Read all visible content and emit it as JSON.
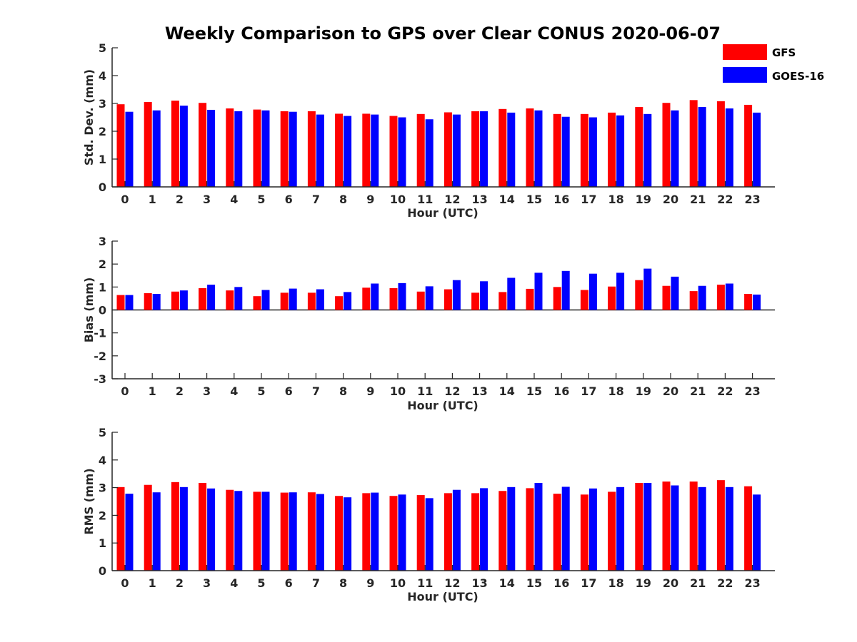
{
  "chart_data": {
    "title": "Weekly Comparison to GPS over Clear CONUS 2020-06-07",
    "legend": {
      "placement": "top-right",
      "entries": [
        {
          "name": "GFS",
          "color": "#ff0000"
        },
        {
          "name": "GOES-16",
          "color": "#0000ff"
        }
      ]
    },
    "panels": [
      {
        "type": "bar",
        "xlabel": "Hour (UTC)",
        "ylabel": "Std. Dev. (mm)",
        "ylim": [
          0,
          5
        ],
        "yticks": [
          "0",
          "1",
          "2",
          "3",
          "4",
          "5"
        ],
        "categories": [
          "0",
          "1",
          "2",
          "3",
          "4",
          "5",
          "6",
          "7",
          "8",
          "9",
          "10",
          "11",
          "12",
          "13",
          "14",
          "15",
          "16",
          "17",
          "18",
          "19",
          "20",
          "21",
          "22",
          "23"
        ],
        "series": [
          {
            "name": "GFS",
            "color": "#ff0000",
            "values": [
              2.97,
              3.05,
              3.1,
              3.02,
              2.82,
              2.78,
              2.72,
              2.72,
              2.63,
              2.63,
              2.55,
              2.62,
              2.68,
              2.72,
              2.8,
              2.82,
              2.62,
              2.62,
              2.67,
              2.87,
              3.02,
              3.12,
              3.08,
              2.95
            ]
          },
          {
            "name": "GOES-16",
            "color": "#0000ff",
            "values": [
              2.7,
              2.75,
              2.92,
              2.77,
              2.72,
              2.75,
              2.7,
              2.6,
              2.55,
              2.6,
              2.5,
              2.43,
              2.6,
              2.72,
              2.67,
              2.75,
              2.52,
              2.5,
              2.57,
              2.62,
              2.75,
              2.87,
              2.82,
              2.67
            ]
          }
        ]
      },
      {
        "type": "bar",
        "xlabel": "Hour (UTC)",
        "ylabel": "Bias (mm)",
        "ylim": [
          -3,
          3
        ],
        "yticks": [
          "-3",
          "-2",
          "-1",
          "0",
          "1",
          "2",
          "3"
        ],
        "categories": [
          "0",
          "1",
          "2",
          "3",
          "4",
          "5",
          "6",
          "7",
          "8",
          "9",
          "10",
          "11",
          "12",
          "13",
          "14",
          "15",
          "16",
          "17",
          "18",
          "19",
          "20",
          "21",
          "22",
          "23"
        ],
        "series": [
          {
            "name": "GFS",
            "color": "#ff0000",
            "values": [
              0.65,
              0.73,
              0.8,
              0.95,
              0.85,
              0.6,
              0.75,
              0.75,
              0.6,
              0.97,
              0.95,
              0.8,
              0.9,
              0.75,
              0.78,
              0.92,
              1.0,
              0.87,
              1.02,
              1.3,
              1.05,
              0.82,
              1.1,
              0.7
            ]
          },
          {
            "name": "GOES-16",
            "color": "#0000ff",
            "values": [
              0.65,
              0.7,
              0.85,
              1.1,
              1.0,
              0.87,
              0.93,
              0.9,
              0.78,
              1.15,
              1.17,
              1.03,
              1.3,
              1.25,
              1.4,
              1.62,
              1.7,
              1.58,
              1.62,
              1.8,
              1.45,
              1.05,
              1.15,
              0.67
            ]
          }
        ]
      },
      {
        "type": "bar",
        "xlabel": "Hour (UTC)",
        "ylabel": "RMS (mm)",
        "ylim": [
          0,
          5
        ],
        "yticks": [
          "0",
          "1",
          "2",
          "3",
          "4",
          "5"
        ],
        "categories": [
          "0",
          "1",
          "2",
          "3",
          "4",
          "5",
          "6",
          "7",
          "8",
          "9",
          "10",
          "11",
          "12",
          "13",
          "14",
          "15",
          "16",
          "17",
          "18",
          "19",
          "20",
          "21",
          "22",
          "23"
        ],
        "series": [
          {
            "name": "GFS",
            "color": "#ff0000",
            "values": [
              3.02,
              3.1,
              3.2,
              3.17,
              2.92,
              2.85,
              2.82,
              2.83,
              2.7,
              2.8,
              2.7,
              2.73,
              2.8,
              2.8,
              2.88,
              2.98,
              2.78,
              2.75,
              2.85,
              3.17,
              3.22,
              3.22,
              3.27,
              3.05
            ]
          },
          {
            "name": "GOES-16",
            "color": "#0000ff",
            "values": [
              2.78,
              2.83,
              3.02,
              2.97,
              2.88,
              2.85,
              2.83,
              2.77,
              2.65,
              2.82,
              2.75,
              2.62,
              2.92,
              2.98,
              3.02,
              3.17,
              3.03,
              2.97,
              3.02,
              3.17,
              3.08,
              3.02,
              3.02,
              2.75
            ]
          }
        ]
      }
    ]
  }
}
